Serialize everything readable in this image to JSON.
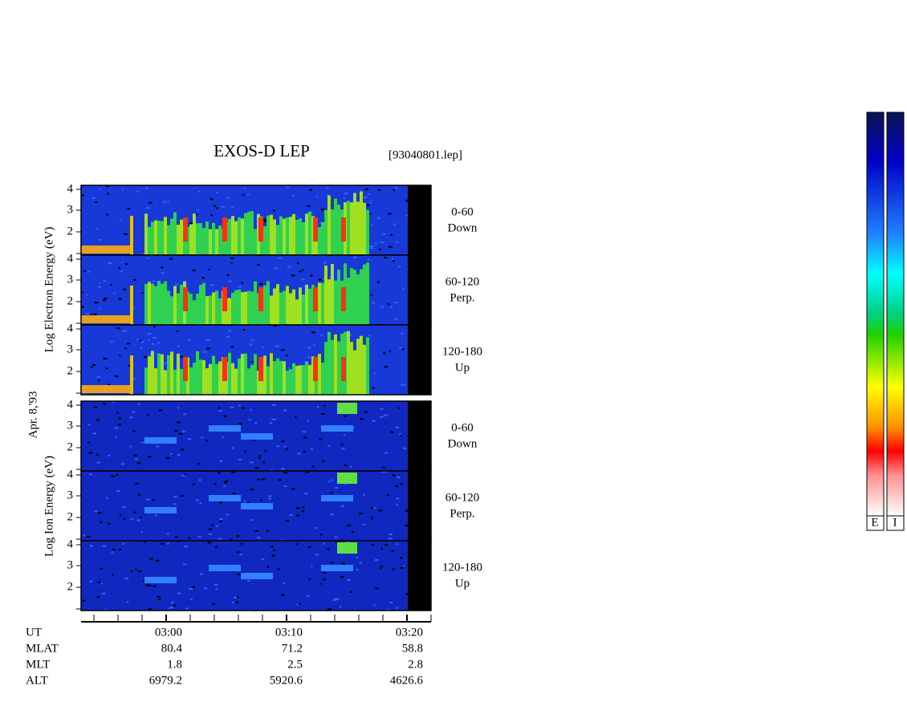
{
  "header": {
    "title": "EXOS-D LEP",
    "file": "[93040801.lep]"
  },
  "energy_ticks": [
    4,
    3,
    2
  ],
  "electron": {
    "axis_label": "Log Electron Energy (eV)",
    "panels": [
      {
        "range": "0-60",
        "direction": "Down"
      },
      {
        "range": "60-120",
        "direction": "Perp."
      },
      {
        "range": "120-180",
        "direction": "Up"
      }
    ]
  },
  "ion": {
    "axis_label": "Log Ion Energy (eV)",
    "panels": [
      {
        "range": "0-60",
        "direction": "Down"
      },
      {
        "range": "60-120",
        "direction": "Perp."
      },
      {
        "range": "120-180",
        "direction": "Up"
      }
    ]
  },
  "date": "Apr. 8,'93",
  "orbit_table": {
    "rows": [
      {
        "label": "UT",
        "values": [
          "03:00",
          "03:10",
          "03:20"
        ]
      },
      {
        "label": "MLAT",
        "values": [
          80.4,
          71.2,
          58.8
        ]
      },
      {
        "label": "MLT",
        "values": [
          1.8,
          2.5,
          2.8
        ]
      },
      {
        "label": "ALT",
        "values": [
          6979.2,
          5920.6,
          4626.6
        ]
      }
    ]
  },
  "colorbar_labels": [
    "E",
    "I"
  ]
}
